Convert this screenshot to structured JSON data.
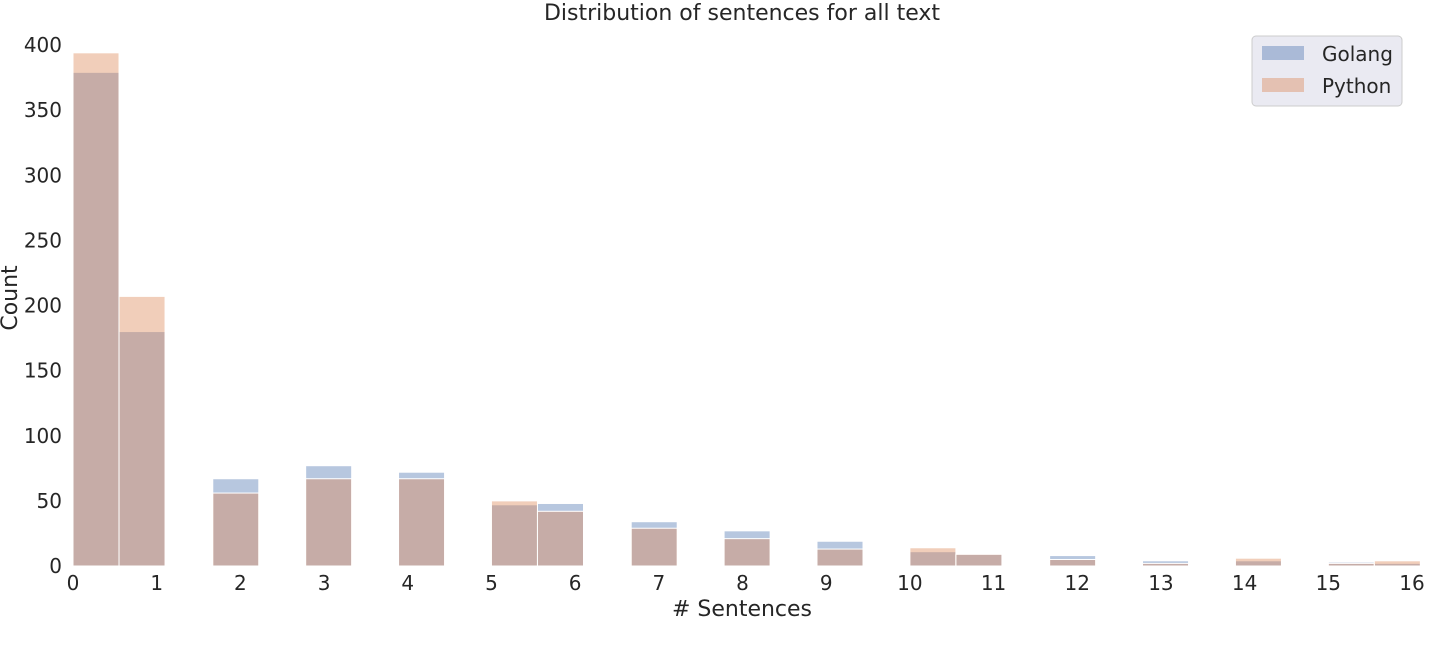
{
  "chart_data": {
    "type": "bar",
    "title": "Distribution of sentences for all text",
    "xlabel": "# Sentences",
    "ylabel": "Count",
    "xlim": [
      0,
      16
    ],
    "ylim": [
      0,
      400
    ],
    "x_ticks": [
      0,
      1,
      2,
      3,
      4,
      5,
      6,
      7,
      8,
      9,
      10,
      11,
      12,
      13,
      14,
      15,
      16
    ],
    "y_ticks": [
      0,
      50,
      100,
      150,
      200,
      250,
      300,
      350,
      400
    ],
    "bin_width": 0.55,
    "bin_starts": [
      0,
      0.55,
      1.67,
      2.78,
      3.89,
      5.0,
      5.55,
      6.67,
      7.78,
      8.89,
      10.0,
      10.55,
      11.67,
      12.78,
      13.89,
      15.0,
      15.55
    ],
    "grid": false,
    "legend_position": "top-right",
    "series": [
      {
        "name": "Golang",
        "color": "#4c72b0",
        "values": [
          379,
          180,
          67,
          77,
          72,
          47,
          48,
          34,
          27,
          19,
          11,
          9,
          8,
          4,
          4,
          3,
          2
        ]
      },
      {
        "name": "Python",
        "color": "#dd8452",
        "values": [
          394,
          207,
          56,
          67,
          67,
          50,
          42,
          29,
          21,
          13,
          14,
          9,
          5,
          2,
          6,
          2,
          4
        ]
      }
    ]
  }
}
